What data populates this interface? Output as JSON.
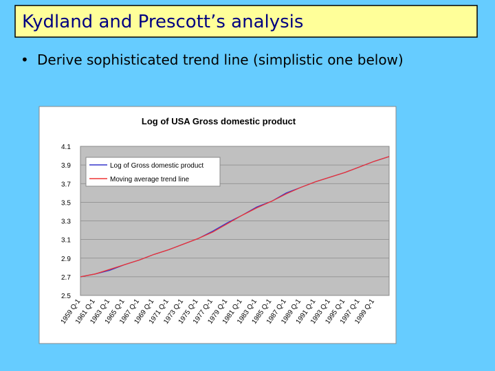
{
  "slide_title": "Kydland and Prescott’s analysis",
  "bullet": "Derive sophisticated trend line (simplistic one below)",
  "chart_data": {
    "type": "line",
    "title": "Log of USA Gross domestic product",
    "categories": [
      "1959 Q-1",
      "1961 Q-1",
      "1963 Q-1",
      "1965 Q-1",
      "1967 Q-1",
      "1969 Q-1",
      "1971 Q-1",
      "1973 Q-1",
      "1975 Q-1",
      "1977 Q-1",
      "1979 Q-1",
      "1981 Q-1",
      "1983 Q-1",
      "1985 Q-1",
      "1987 Q-1",
      "1989 Q-1",
      "1991 Q-1",
      "1993 Q-1",
      "1995 Q-1",
      "1997 Q-1",
      "1999 Q-1",
      null
    ],
    "series": [
      {
        "name": "Log of Gross domestic product",
        "color": "#3333cc",
        "values": [
          2.7,
          2.73,
          2.77,
          2.83,
          2.88,
          2.94,
          2.99,
          3.05,
          3.11,
          3.19,
          3.28,
          3.36,
          3.45,
          3.51,
          3.6,
          3.66,
          3.72,
          3.77,
          3.82,
          3.88,
          3.94,
          3.99
        ]
      },
      {
        "name": "Moving average trend line",
        "color": "#ee3333",
        "values": [
          2.7,
          2.73,
          2.78,
          2.83,
          2.88,
          2.94,
          2.99,
          3.05,
          3.11,
          3.18,
          3.27,
          3.36,
          3.44,
          3.51,
          3.59,
          3.66,
          3.72,
          3.77,
          3.82,
          3.88,
          3.94,
          3.99
        ]
      }
    ],
    "ylim": [
      2.5,
      4.1
    ],
    "yticks": [
      2.5,
      2.7,
      2.9,
      3.1,
      3.3,
      3.5,
      3.7,
      3.9,
      4.1
    ],
    "grid": true,
    "legend": "upper left"
  }
}
